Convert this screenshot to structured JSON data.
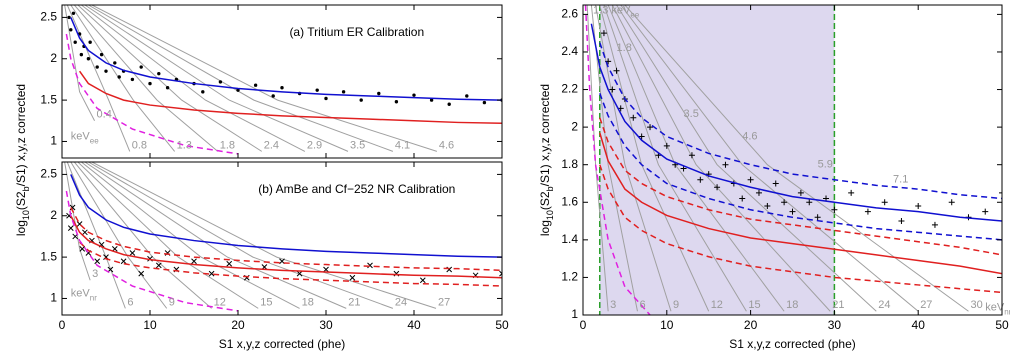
{
  "chart_data": [
    {
      "type": "scatter",
      "title": "(a) Tritium ER Calibration",
      "ylabel": [
        "log",
        "10",
        "(S2",
        "b",
        "/S1) x,y,z corrected"
      ],
      "xlim": [
        0,
        50
      ],
      "ylim": [
        0.8,
        2.65
      ],
      "xticks": [
        0,
        10,
        20,
        30,
        40,
        50
      ],
      "yticks": [
        1,
        1.5,
        2,
        2.5
      ],
      "xticklabels": false,
      "x": [
        1,
        2,
        3,
        5,
        7,
        10,
        15,
        20,
        25,
        30,
        35,
        40,
        45,
        50
      ],
      "series": [
        {
          "marker": "dot",
          "color": "#000000",
          "x": [
            0.8,
            1,
            1.3,
            1.5,
            2,
            2.2,
            2.5,
            3,
            3.2,
            4,
            4.5,
            5,
            6,
            6.5,
            7,
            8,
            9,
            10,
            11,
            12,
            13,
            15,
            16,
            18,
            20,
            22,
            24,
            25,
            27,
            29,
            30,
            32,
            34,
            36,
            38,
            40,
            42,
            44,
            46,
            48,
            50
          ],
          "values": [
            2.5,
            2.35,
            2.55,
            2.2,
            2.3,
            2.05,
            2.15,
            2.0,
            2.2,
            1.9,
            2.05,
            1.85,
            1.95,
            1.78,
            1.85,
            1.75,
            1.9,
            1.7,
            1.82,
            1.65,
            1.75,
            1.7,
            1.6,
            1.72,
            1.62,
            1.68,
            1.55,
            1.65,
            1.58,
            1.62,
            1.52,
            1.6,
            1.5,
            1.58,
            1.48,
            1.56,
            1.5,
            1.45,
            1.55,
            1.47,
            1.5
          ]
        },
        {
          "color": "#1010d0",
          "values": [
            2.5,
            2.25,
            2.1,
            1.95,
            1.86,
            1.78,
            1.7,
            1.64,
            1.6,
            1.57,
            1.55,
            1.53,
            1.51,
            1.5
          ]
        },
        {
          "color": "#e02020",
          "values": [
            null,
            1.85,
            1.7,
            1.58,
            1.5,
            1.44,
            1.38,
            1.34,
            1.31,
            1.29,
            1.27,
            1.25,
            1.23,
            1.22
          ]
        },
        {
          "color": "#e020e0",
          "dash": true,
          "x": [
            0.5,
            1,
            2,
            4,
            8,
            14,
            20
          ],
          "values": [
            2.3,
            2.0,
            1.7,
            1.4,
            1.15,
            0.95,
            0.85
          ]
        }
      ],
      "contour_color": "#a0a0a0",
      "contours": [
        {
          "name": "0.4",
          "x": [
            0.3,
            2,
            3.7
          ],
          "values": [
            2.65,
            1.6,
            1.25
          ]
        },
        {
          "name": "0.8",
          "x": [
            0.6,
            5.3,
            7.7
          ],
          "values": [
            2.65,
            1.5,
            0.88
          ]
        },
        {
          "name": "1.3",
          "x": [
            1.0,
            8.1,
            12.8
          ],
          "values": [
            2.65,
            1.5,
            0.88
          ]
        },
        {
          "name": "1.8",
          "x": [
            1.4,
            10.8,
            17.7
          ],
          "values": [
            2.65,
            1.5,
            0.88
          ]
        },
        {
          "name": "2.4",
          "x": [
            1.8,
            13.6,
            22.7
          ],
          "values": [
            2.65,
            1.5,
            0.88
          ]
        },
        {
          "name": "2.9",
          "x": [
            2.2,
            16.3,
            27.6
          ],
          "values": [
            2.65,
            1.5,
            0.88
          ]
        },
        {
          "name": "3.5",
          "x": [
            2.6,
            19.0,
            32.5
          ],
          "values": [
            2.65,
            1.5,
            0.88
          ]
        },
        {
          "name": "4.1",
          "x": [
            3.0,
            21.8,
            37.6
          ],
          "values": [
            2.65,
            1.5,
            0.88
          ]
        },
        {
          "name": "4.6",
          "x": [
            3.4,
            24.5,
            42.6
          ],
          "values": [
            2.65,
            1.5,
            0.88
          ]
        }
      ],
      "unit": {
        "text": "keV",
        "sub": "ee",
        "x": 1,
        "y": 1.06
      }
    },
    {
      "type": "scatter",
      "title": "(b) AmBe and Cf−252 NR Calibration",
      "xlabel": "S1 x,y,z corrected (phe)",
      "xlim": [
        0,
        50
      ],
      "ylim": [
        0.8,
        2.65
      ],
      "xticks": [
        0,
        10,
        20,
        30,
        40,
        50
      ],
      "yticks": [
        1,
        1.5,
        2,
        2.5
      ],
      "x": [
        1,
        2,
        3,
        5,
        7,
        10,
        15,
        20,
        25,
        30,
        35,
        40,
        45,
        50
      ],
      "series": [
        {
          "marker": "cross",
          "color": "#000000",
          "x": [
            0.8,
            1,
            1.2,
            1.5,
            2,
            2.3,
            2.6,
            3,
            3.4,
            4,
            4.5,
            5,
            5.5,
            6,
            7,
            8,
            9,
            10,
            11,
            12,
            13,
            15,
            17,
            19,
            21,
            23,
            25,
            27,
            30,
            33,
            35,
            38,
            41,
            44,
            47,
            50
          ],
          "values": [
            2.0,
            1.85,
            2.1,
            1.75,
            1.9,
            1.6,
            1.8,
            1.55,
            1.7,
            1.45,
            1.65,
            1.5,
            1.35,
            1.6,
            1.45,
            1.55,
            1.3,
            1.48,
            1.4,
            1.55,
            1.35,
            1.45,
            1.3,
            1.42,
            1.25,
            1.38,
            1.45,
            1.3,
            1.35,
            1.25,
            1.4,
            1.3,
            1.22,
            1.35,
            1.28,
            1.3
          ]
        },
        {
          "color": "#1010d0",
          "values": [
            2.5,
            2.25,
            2.1,
            1.95,
            1.86,
            1.78,
            1.7,
            1.64,
            1.6,
            1.57,
            1.55,
            1.53,
            1.51,
            1.5
          ]
        },
        {
          "color": "#e02020",
          "values": [
            2.0,
            1.8,
            1.7,
            1.6,
            1.53,
            1.47,
            1.41,
            1.37,
            1.34,
            1.32,
            1.3,
            1.28,
            1.27,
            1.25
          ]
        },
        {
          "color": "#e02020",
          "dash": true,
          "values": [
            2.1,
            1.9,
            1.8,
            1.7,
            1.63,
            1.56,
            1.5,
            1.46,
            1.43,
            1.41,
            1.39,
            1.37,
            1.36,
            1.34
          ]
        },
        {
          "color": "#e02020",
          "dash": true,
          "values": [
            null,
            1.68,
            1.58,
            1.48,
            1.42,
            1.37,
            1.31,
            1.27,
            1.24,
            1.22,
            1.2,
            1.18,
            1.17,
            1.15
          ]
        },
        {
          "color": "#e020e0",
          "dash": true,
          "x": [
            0.5,
            1,
            2,
            4,
            8,
            14,
            20
          ],
          "values": [
            2.3,
            2.0,
            1.7,
            1.4,
            1.15,
            0.95,
            0.85
          ]
        }
      ],
      "contour_color": "#a0a0a0",
      "contours": [
        {
          "name": "3",
          "x": [
            0.3,
            2,
            3.2
          ],
          "values": [
            2.65,
            1.6,
            1.22
          ]
        },
        {
          "name": "6",
          "x": [
            0.6,
            5,
            7.2
          ],
          "values": [
            2.65,
            1.5,
            0.88
          ]
        },
        {
          "name": "9",
          "x": [
            1.0,
            7.5,
            11.9
          ],
          "values": [
            2.65,
            1.5,
            0.88
          ]
        },
        {
          "name": "12",
          "x": [
            1.4,
            10.3,
            17
          ],
          "values": [
            2.65,
            1.5,
            0.88
          ]
        },
        {
          "name": "15",
          "x": [
            1.8,
            13.2,
            22.3
          ],
          "values": [
            2.65,
            1.5,
            0.88
          ]
        },
        {
          "name": "18",
          "x": [
            2.2,
            15.8,
            27
          ],
          "values": [
            2.65,
            1.5,
            0.88
          ]
        },
        {
          "name": "21",
          "x": [
            2.6,
            18.8,
            32.3
          ],
          "values": [
            2.65,
            1.5,
            0.88
          ]
        },
        {
          "name": "24",
          "x": [
            3.0,
            21.7,
            37.6
          ],
          "values": [
            2.65,
            1.5,
            0.88
          ]
        },
        {
          "name": "27",
          "x": [
            3.4,
            24.4,
            42.5
          ],
          "values": [
            2.65,
            1.5,
            0.88
          ]
        }
      ],
      "unit": {
        "text": "keV",
        "sub": "nr",
        "x": 1,
        "y": 1.06
      }
    },
    {
      "type": "scatter",
      "xlabel": "S1 x,y,z corrected (phe)",
      "ylabel": [
        "log",
        "10",
        "(S2",
        "b",
        "/S1) x,y,z corrected"
      ],
      "xlim": [
        0,
        50
      ],
      "ylim": [
        1,
        2.65
      ],
      "xticks": [
        0,
        10,
        20,
        30,
        40,
        50
      ],
      "yticks": [
        1,
        {
          "value": 1.2,
          "label": "1.2"
        },
        {
          "value": 1.4,
          "label": "1.4"
        },
        {
          "value": 1.6,
          "label": "1.6"
        },
        {
          "value": 1.8,
          "label": "1.8"
        },
        2,
        {
          "value": 2.2,
          "label": "2.2"
        },
        {
          "value": 2.4,
          "label": "2.4"
        },
        {
          "value": 2.6,
          "label": "2.6"
        }
      ],
      "shade": [
        2,
        30
      ],
      "shade_color": "#ddd8ef",
      "vline_color": "#2aa02a",
      "x": [
        1,
        2,
        3,
        5,
        7,
        10,
        15,
        20,
        25,
        30,
        35,
        40,
        45,
        50
      ],
      "series": [
        {
          "marker": "plus",
          "color": "#000000",
          "x": [
            2.5,
            3,
            3.5,
            4,
            4.5,
            5,
            6,
            7,
            8,
            9,
            10,
            11,
            12,
            13,
            14,
            15,
            16,
            17,
            18,
            19,
            20,
            21,
            22,
            23,
            24,
            25,
            26,
            27,
            28,
            29,
            30,
            32,
            34,
            36,
            38,
            40,
            42,
            44,
            46,
            48,
            50
          ],
          "values": [
            2.5,
            2.35,
            2.2,
            2.3,
            2.1,
            2.15,
            2.05,
            1.95,
            2.0,
            1.85,
            1.9,
            1.8,
            1.78,
            1.85,
            1.72,
            1.75,
            1.68,
            1.8,
            1.7,
            1.62,
            1.72,
            1.65,
            1.58,
            1.7,
            1.6,
            1.55,
            1.65,
            1.6,
            1.52,
            1.62,
            1.56,
            1.65,
            1.55,
            1.6,
            1.5,
            1.58,
            1.48,
            1.6,
            1.52,
            1.55,
            1.65
          ]
        },
        {
          "color": "#1010d0",
          "values": [
            2.55,
            2.32,
            2.2,
            2.03,
            1.93,
            1.83,
            1.74,
            1.68,
            1.63,
            1.6,
            1.57,
            1.55,
            1.52,
            1.5
          ]
        },
        {
          "color": "#1010d0",
          "dash": true,
          "values": [
            null,
            2.45,
            2.32,
            2.15,
            2.05,
            1.95,
            1.86,
            1.8,
            1.75,
            1.72,
            1.69,
            1.67,
            1.64,
            1.62
          ]
        },
        {
          "color": "#1010d0",
          "dash": true,
          "values": [
            null,
            2.18,
            2.06,
            1.9,
            1.8,
            1.7,
            1.62,
            1.56,
            1.52,
            1.49,
            1.46,
            1.44,
            1.42,
            1.4
          ]
        },
        {
          "color": "#e02020",
          "values": [
            null,
            1.97,
            1.82,
            1.67,
            1.6,
            1.53,
            1.46,
            1.41,
            1.38,
            1.35,
            1.32,
            1.29,
            1.26,
            1.22
          ]
        },
        {
          "color": "#e02020",
          "dash": true,
          "values": [
            null,
            2.05,
            1.92,
            1.77,
            1.7,
            1.63,
            1.56,
            1.51,
            1.48,
            1.45,
            1.42,
            1.39,
            1.36,
            1.32
          ]
        },
        {
          "color": "#e02020",
          "dash": true,
          "values": [
            null,
            1.8,
            1.67,
            1.52,
            1.45,
            1.38,
            1.31,
            1.26,
            1.23,
            1.2,
            1.18,
            1.16,
            1.14,
            1.12
          ]
        },
        {
          "color": "#e020e0",
          "dash": true,
          "x": [
            0.3,
            0.8,
            1.5,
            3,
            5,
            8
          ],
          "values": [
            2.65,
            2.2,
            1.8,
            1.4,
            1.15,
            1.0
          ]
        }
      ],
      "contour_color": "#a0a0a0",
      "contours": [
        {
          "name": "3",
          "x": [
            0.5,
            1.5,
            3
          ],
          "values": [
            2.65,
            1.8,
            1.02
          ]
        },
        {
          "name": "6",
          "x": [
            1,
            3,
            6.5
          ],
          "values": [
            2.65,
            1.8,
            1.02
          ]
        },
        {
          "name": "9",
          "x": [
            1.5,
            5,
            10.5
          ],
          "values": [
            2.65,
            1.8,
            1.02
          ]
        },
        {
          "name": "12",
          "x": [
            2,
            7,
            15
          ],
          "values": [
            2.65,
            1.8,
            1.02
          ]
        },
        {
          "name": "15",
          "x": [
            2.5,
            9,
            19.5
          ],
          "values": [
            2.65,
            1.8,
            1.02
          ]
        },
        {
          "name": "18",
          "x": [
            3,
            11,
            24
          ],
          "values": [
            2.65,
            1.8,
            1.02
          ]
        },
        {
          "name": "21",
          "x": [
            3.5,
            13.5,
            29.5
          ],
          "values": [
            2.65,
            1.8,
            1.02
          ]
        },
        {
          "name": "24",
          "x": [
            4,
            16,
            35
          ],
          "values": [
            2.65,
            1.8,
            1.02
          ]
        },
        {
          "name": "27",
          "x": [
            4.5,
            19,
            40
          ],
          "values": [
            2.65,
            1.8,
            1.02
          ]
        },
        {
          "name": "30",
          "x": [
            5,
            22,
            46
          ],
          "values": [
            2.65,
            1.8,
            1.02
          ]
        }
      ],
      "ee_labels": [
        {
          "text": "1.8",
          "x": 4,
          "y": 2.42
        },
        {
          "text": "3.5",
          "x": 12,
          "y": 2.07
        },
        {
          "text": "4.6",
          "x": 19,
          "y": 1.95
        },
        {
          "text": "5.9",
          "x": 28,
          "y": 1.8
        },
        {
          "text": "7.1",
          "x": 37,
          "y": 1.72
        }
      ],
      "top_unit": {
        "text": "1.3 keV",
        "sub": "ee",
        "x": 1.2,
        "y": 2.62
      },
      "unit": {
        "text": "keV",
        "sub": "nr",
        "x": 48,
        "y": 1.04
      }
    }
  ]
}
